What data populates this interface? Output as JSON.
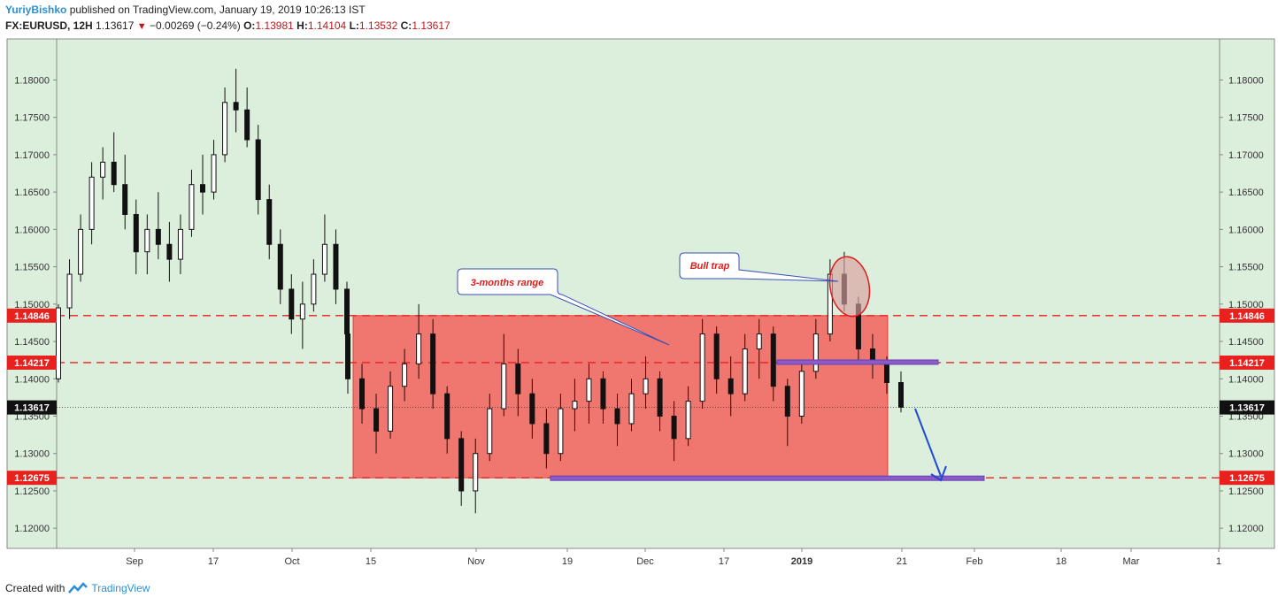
{
  "header": {
    "author": "YuriyBishko",
    "published_text": "published on TradingView.com, January 19, 2019 10:26:13 IST",
    "symbol": "FX:EURUSD, 12H",
    "last_price": "1.13617",
    "change": "−0.00269 (−0.24%)",
    "o_label": "O:",
    "open": "1.13981",
    "h_label": "H:",
    "high": "1.14104",
    "l_label": "L:",
    "low": "1.13532",
    "c_label": "C:",
    "close": "1.13617"
  },
  "footer": {
    "created_with": "Created with",
    "brand": "TradingView"
  },
  "colors": {
    "background": "#dcefdc",
    "range_fill": "#f07068",
    "level_line": "#e8201e",
    "candle": "#111111",
    "purple_zone": "#8a5cc8",
    "annotation_text": "#e01b1b",
    "arrow": "#1f48d6"
  },
  "chart_data": {
    "type": "candlestick",
    "symbol": "EURUSD",
    "timeframe": "12H",
    "ylim": [
      1.1173,
      1.1855
    ],
    "y_ticks": [
      "1.12000",
      "1.12500",
      "1.13000",
      "1.13500",
      "1.14000",
      "1.14500",
      "1.15000",
      "1.15500",
      "1.16000",
      "1.16500",
      "1.17000",
      "1.17500",
      "1.18000"
    ],
    "x_ticks": [
      "Sep",
      "17",
      "Oct",
      "15",
      "Nov",
      "19",
      "Dec",
      "17",
      "2019",
      "21",
      "Feb",
      "18",
      "Mar",
      "1"
    ],
    "price_levels": [
      {
        "label": "1.14846",
        "value": 1.14846
      },
      {
        "label": "1.14217",
        "value": 1.14217
      },
      {
        "label": "1.12675",
        "value": 1.12675
      }
    ],
    "last_price": {
      "label": "1.13617",
      "value": 1.13617
    },
    "annotations": [
      {
        "text": "3-months range"
      },
      {
        "text": "Bull trap"
      }
    ],
    "range_box": {
      "from": "Oct 12",
      "to": "Jan 17",
      "low": 1.12675,
      "high": 1.14846
    },
    "candles_approx": [
      [
        1.14,
        1.15,
        1.1395,
        1.1495
      ],
      [
        1.1495,
        1.156,
        1.148,
        1.154
      ],
      [
        1.154,
        1.162,
        1.153,
        1.16
      ],
      [
        1.16,
        1.169,
        1.158,
        1.167
      ],
      [
        1.167,
        1.171,
        1.164,
        1.169
      ],
      [
        1.169,
        1.173,
        1.165,
        1.166
      ],
      [
        1.166,
        1.17,
        1.16,
        1.162
      ],
      [
        1.162,
        1.164,
        1.154,
        1.157
      ],
      [
        1.157,
        1.162,
        1.154,
        1.16
      ],
      [
        1.16,
        1.165,
        1.156,
        1.158
      ],
      [
        1.158,
        1.161,
        1.153,
        1.156
      ],
      [
        1.156,
        1.162,
        1.154,
        1.16
      ],
      [
        1.16,
        1.168,
        1.159,
        1.166
      ],
      [
        1.166,
        1.17,
        1.162,
        1.165
      ],
      [
        1.165,
        1.172,
        1.164,
        1.17
      ],
      [
        1.17,
        1.179,
        1.169,
        1.177
      ],
      [
        1.177,
        1.1815,
        1.173,
        1.176
      ],
      [
        1.176,
        1.179,
        1.171,
        1.172
      ],
      [
        1.172,
        1.174,
        1.162,
        1.164
      ],
      [
        1.164,
        1.166,
        1.156,
        1.158
      ],
      [
        1.158,
        1.16,
        1.15,
        1.152
      ],
      [
        1.152,
        1.154,
        1.146,
        1.148
      ],
      [
        1.148,
        1.153,
        1.144,
        1.15
      ],
      [
        1.15,
        1.156,
        1.149,
        1.154
      ],
      [
        1.154,
        1.162,
        1.153,
        1.158
      ],
      [
        1.158,
        1.16,
        1.15,
        1.152
      ],
      [
        1.152,
        1.153,
        1.144,
        1.146
      ],
      [
        1.146,
        1.148,
        1.138,
        1.14
      ],
      [
        1.14,
        1.142,
        1.134,
        1.136
      ],
      [
        1.136,
        1.138,
        1.13,
        1.133
      ],
      [
        1.133,
        1.141,
        1.132,
        1.139
      ],
      [
        1.139,
        1.144,
        1.137,
        1.142
      ],
      [
        1.142,
        1.15,
        1.14,
        1.146
      ],
      [
        1.146,
        1.148,
        1.136,
        1.138
      ],
      [
        1.138,
        1.139,
        1.13,
        1.132
      ],
      [
        1.132,
        1.133,
        1.123,
        1.125
      ],
      [
        1.125,
        1.132,
        1.122,
        1.13
      ],
      [
        1.13,
        1.138,
        1.129,
        1.136
      ],
      [
        1.136,
        1.146,
        1.135,
        1.142
      ],
      [
        1.142,
        1.144,
        1.135,
        1.138
      ],
      [
        1.138,
        1.14,
        1.132,
        1.134
      ],
      [
        1.134,
        1.136,
        1.128,
        1.13
      ],
      [
        1.13,
        1.138,
        1.129,
        1.136
      ],
      [
        1.136,
        1.14,
        1.133,
        1.137
      ],
      [
        1.137,
        1.142,
        1.134,
        1.14
      ],
      [
        1.14,
        1.141,
        1.134,
        1.136
      ],
      [
        1.136,
        1.138,
        1.131,
        1.134
      ],
      [
        1.134,
        1.14,
        1.133,
        1.138
      ],
      [
        1.138,
        1.143,
        1.136,
        1.14
      ],
      [
        1.14,
        1.141,
        1.133,
        1.135
      ],
      [
        1.135,
        1.137,
        1.129,
        1.132
      ],
      [
        1.132,
        1.139,
        1.131,
        1.137
      ],
      [
        1.137,
        1.148,
        1.136,
        1.146
      ],
      [
        1.146,
        1.147,
        1.138,
        1.14
      ],
      [
        1.14,
        1.143,
        1.135,
        1.138
      ],
      [
        1.138,
        1.146,
        1.137,
        1.144
      ],
      [
        1.144,
        1.148,
        1.14,
        1.146
      ],
      [
        1.146,
        1.147,
        1.137,
        1.139
      ],
      [
        1.139,
        1.14,
        1.131,
        1.135
      ],
      [
        1.135,
        1.142,
        1.134,
        1.141
      ],
      [
        1.141,
        1.148,
        1.14,
        1.146
      ],
      [
        1.146,
        1.156,
        1.145,
        1.154
      ],
      [
        1.154,
        1.157,
        1.149,
        1.15
      ],
      [
        1.15,
        1.151,
        1.142,
        1.144
      ],
      [
        1.144,
        1.146,
        1.14,
        1.142
      ],
      [
        1.142,
        1.143,
        1.138,
        1.1395
      ],
      [
        1.1395,
        1.141,
        1.1355,
        1.1362
      ]
    ]
  }
}
